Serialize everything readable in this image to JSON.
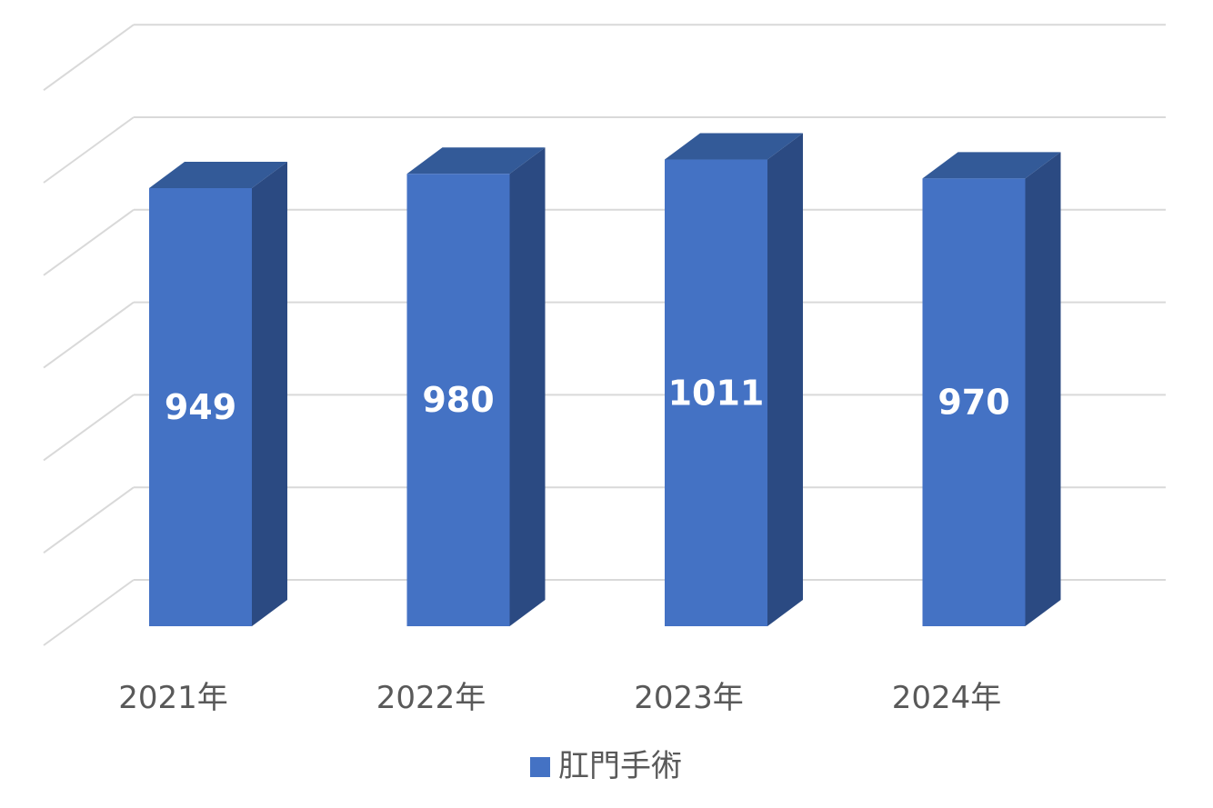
{
  "chart_data": {
    "type": "bar",
    "style": "3d-column",
    "categories": [
      "2021年",
      "2022年",
      "2023年",
      "2024年"
    ],
    "series": [
      {
        "name": "肛門手術",
        "values": [
          949,
          980,
          1011,
          970
        ],
        "color": "#4472C4",
        "side_color": "#2B4A82",
        "top_color": "#335A98"
      }
    ],
    "title": "",
    "xlabel": "",
    "ylabel": "",
    "ylim": [
      0,
      1200
    ],
    "grid": true,
    "gridline_color": "#D9D9D9",
    "value_labels": true,
    "legend_position": "bottom"
  }
}
